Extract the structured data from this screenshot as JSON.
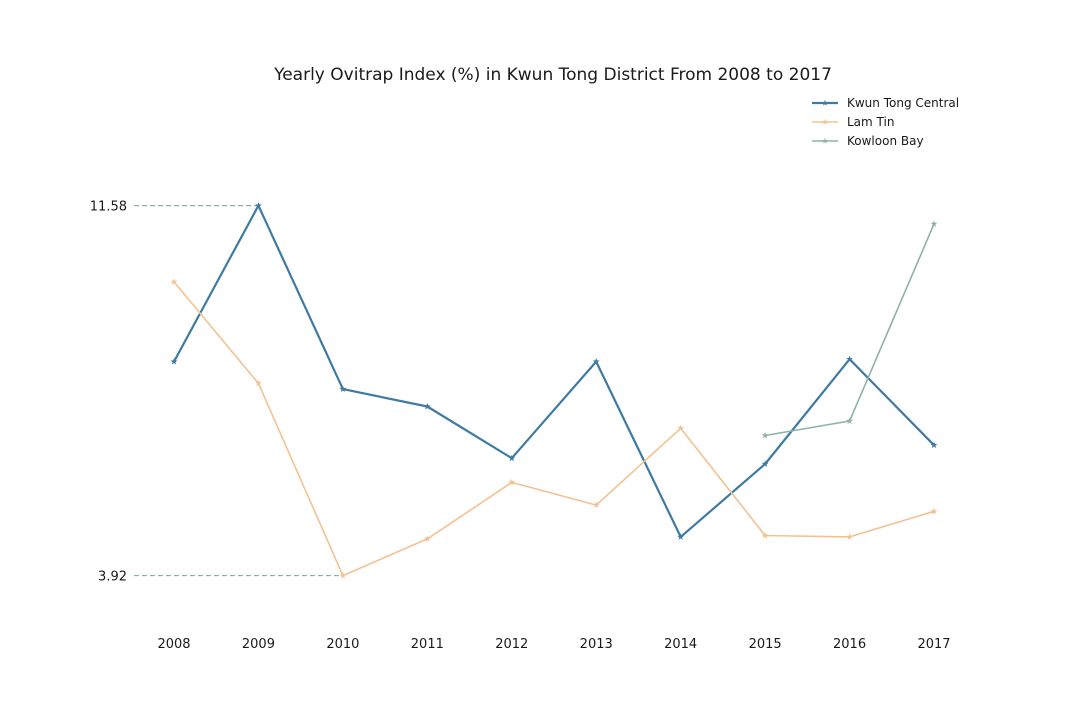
{
  "chart_data": {
    "type": "line",
    "title": "Yearly Ovitrap Index (%) in Kwun Tong District From 2008 to 2017",
    "xlabel": "",
    "ylabel": "",
    "categories": [
      "2008",
      "2009",
      "2010",
      "2011",
      "2012",
      "2013",
      "2014",
      "2015",
      "2016",
      "2017"
    ],
    "y_ticks": [
      "3.92",
      "11.58"
    ],
    "ylim": [
      3.0,
      12.4
    ],
    "grid": false,
    "legend_position": "top-right",
    "reference_lines": [
      {
        "y": 11.58,
        "from": "2008",
        "to": "2009"
      },
      {
        "y": 3.92,
        "from": "2008",
        "to": "2010"
      }
    ],
    "series": [
      {
        "name": "Kwun Tong Central",
        "color": "#3e7aa1",
        "values": [
          8.35,
          11.58,
          7.78,
          7.42,
          6.35,
          8.35,
          4.72,
          6.23,
          8.4,
          6.62
        ]
      },
      {
        "name": "Lam Tin",
        "color": "#f2c292",
        "values": [
          10.0,
          7.9,
          3.92,
          4.68,
          5.85,
          5.38,
          6.97,
          4.75,
          4.72,
          5.25
        ]
      },
      {
        "name": "Kowloon Bay",
        "color": "#8fb3a3",
        "values": [
          null,
          null,
          null,
          null,
          null,
          null,
          null,
          6.82,
          7.12,
          11.2
        ]
      }
    ]
  }
}
